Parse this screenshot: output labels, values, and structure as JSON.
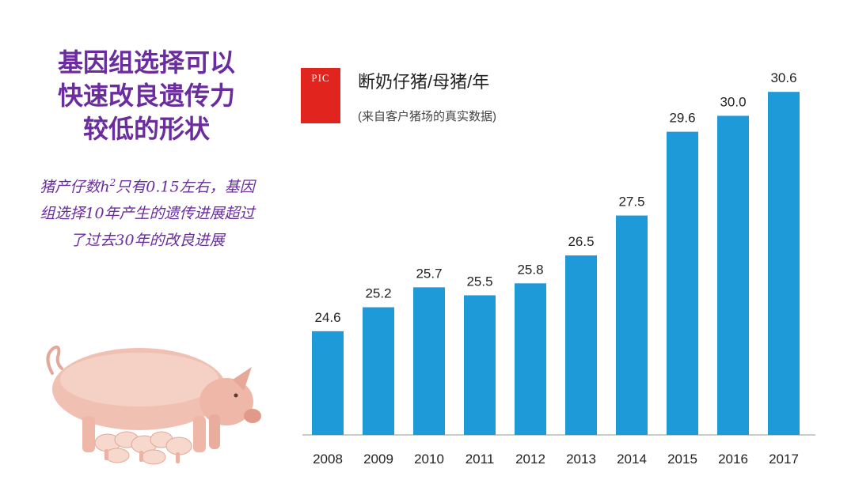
{
  "headline": [
    "基因组选择可以",
    "快速改良遗传力",
    "较低的形状"
  ],
  "note": {
    "part1": "猪产仔数h",
    "sup": "2",
    "part2": "只有0.15左右，基因组选择10年产生的遗传进展超过了过去30年的改良进展"
  },
  "logo": {
    "text": "PIC",
    "color": "#e1241d"
  },
  "chart_data": {
    "type": "bar",
    "title": "断奶仔猪/母猪/年",
    "subtitle": "(来自客户猪场的真实数据)",
    "categories": [
      "2008",
      "2009",
      "2010",
      "2011",
      "2012",
      "2013",
      "2014",
      "2015",
      "2016",
      "2017"
    ],
    "values": [
      24.6,
      25.2,
      25.7,
      25.5,
      25.8,
      26.5,
      27.5,
      29.6,
      30.0,
      30.6
    ],
    "value_labels": [
      "24.6",
      "25.2",
      "25.7",
      "25.5",
      "25.8",
      "26.5",
      "27.5",
      "29.6",
      "30.0",
      "30.6"
    ],
    "bar_color": "#1f9ad8",
    "ylim": [
      22,
      31
    ],
    "grid": false,
    "legend": "none"
  }
}
